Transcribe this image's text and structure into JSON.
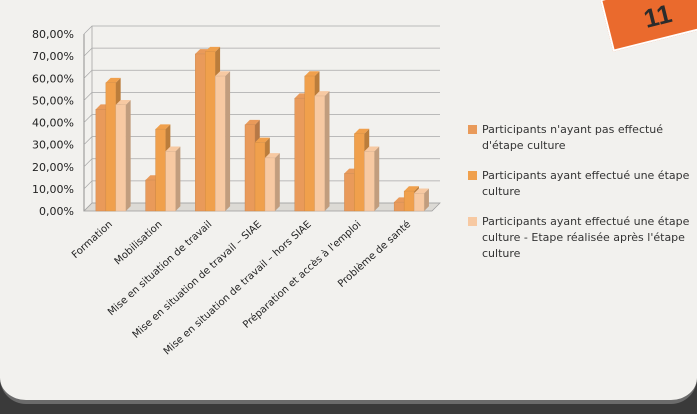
{
  "page_badge": "11",
  "chart_data": {
    "type": "bar",
    "title": "",
    "xlabel": "",
    "ylabel": "",
    "ylim": [
      0,
      80
    ],
    "y_ticks": [
      "80,00%",
      "70,00%",
      "60,00%",
      "50,00%",
      "40,00%",
      "30,00%",
      "20,00%",
      "10,00%",
      "0,00%"
    ],
    "categories": [
      "Formation",
      "Mobilisation",
      "Mise en situation de travail",
      "Mise en situation de travail – SIAE",
      "Mise en situation de travail – hors SIAE",
      "Préparation et accès à l'emploi",
      "Problème de santé"
    ],
    "series": [
      {
        "name": "Participants n'ayant pas effectué d'étape culture",
        "color": "#e99a5a",
        "values": [
          46,
          14,
          71,
          39,
          51,
          17,
          4
        ]
      },
      {
        "name": "Participants ayant effectué une étape culture",
        "color": "#f0a04c",
        "values": [
          58,
          37,
          72,
          31,
          61,
          35,
          9
        ]
      },
      {
        "name": "Participants ayant effectué une étape culture - Etape réalisée après l'étape culture",
        "color": "#f7c9a2",
        "values": [
          48,
          27,
          61,
          24,
          52,
          27,
          8
        ]
      }
    ],
    "grid": true,
    "legend_position": "right",
    "three_d": true
  }
}
